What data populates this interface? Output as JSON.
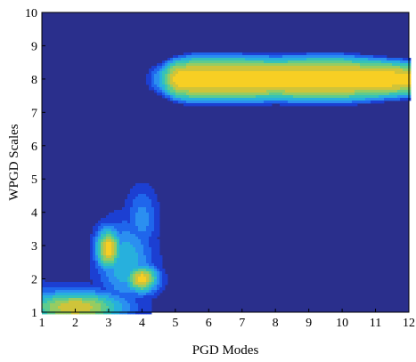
{
  "chart_data": {
    "type": "contour",
    "xlabel": "PGD Modes",
    "ylabel": "WPGD Scales",
    "xlim": [
      1,
      12
    ],
    "ylim": [
      1,
      10
    ],
    "x_ticks": [
      "1",
      "2",
      "3",
      "4",
      "5",
      "6",
      "7",
      "8",
      "9",
      "10",
      "11",
      "12"
    ],
    "y_ticks": [
      "1",
      "2",
      "3",
      "4",
      "5",
      "6",
      "7",
      "8",
      "9",
      "10"
    ],
    "colormap": [
      "#2a2f8c",
      "#1c3fd2",
      "#1f66ec",
      "#2b8ff0",
      "#27b0dd",
      "#35c2b8",
      "#5fcb8d",
      "#96cc62",
      "#cfc43a",
      "#f7cf24",
      "#fde63a"
    ],
    "background_color": "#2a2f8c",
    "upper_region": {
      "x": [
        4,
        4.5,
        5,
        5.5,
        6,
        7,
        8,
        9,
        10,
        11,
        12
      ],
      "peak_y": [
        8.0,
        8.0,
        8.0,
        8.0,
        8.0,
        8.0,
        8.0,
        8.0,
        8.0,
        8.0,
        8.0
      ],
      "spread": [
        0.3,
        0.55,
        0.75,
        0.85,
        0.85,
        0.85,
        0.8,
        0.85,
        0.85,
        0.75,
        0.65
      ],
      "peak_level": [
        0.0,
        4.0,
        9.6,
        10.0,
        10.0,
        10.0,
        10.0,
        10.0,
        10.0,
        10.0,
        9.6
      ]
    },
    "lower_region": {
      "bumps": [
        {
          "x": 3.0,
          "y": 2.9,
          "sx": 0.28,
          "sy": 0.45,
          "level": 9.8
        },
        {
          "x": 4.0,
          "y": 2.0,
          "sx": 0.35,
          "sy": 0.3,
          "level": 9.8
        },
        {
          "x": 3.5,
          "y": 2.5,
          "sx": 0.6,
          "sy": 0.9,
          "level": 5.0
        },
        {
          "x": 4.0,
          "y": 3.8,
          "sx": 0.35,
          "sy": 0.7,
          "level": 3.5
        },
        {
          "x": 2.0,
          "y": 1.15,
          "sx": 1.1,
          "sy": 0.35,
          "level": 9.0
        },
        {
          "x": 1.0,
          "y": 1.2,
          "sx": 0.8,
          "sy": 0.45,
          "level": 4.0
        }
      ]
    }
  }
}
